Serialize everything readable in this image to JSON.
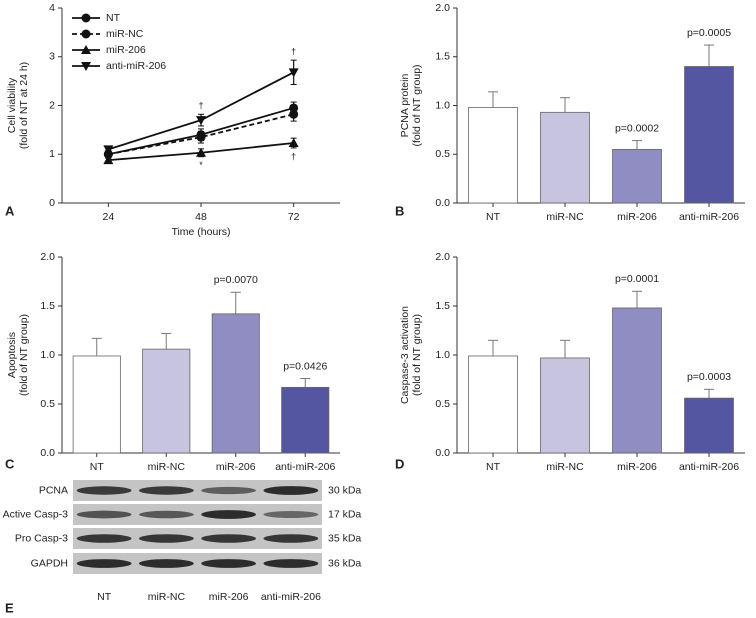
{
  "chart_data": [
    {
      "type": "line",
      "panel": "A",
      "ylabel": [
        "Cell viability",
        "(fold of NT at 24 h)"
      ],
      "xlabel": "Time (hours)",
      "categories": [
        "24",
        "48",
        "72"
      ],
      "ylim": [
        0,
        4
      ],
      "yticks": [
        0,
        1,
        2,
        3,
        4
      ],
      "series": [
        {
          "name": "NT",
          "color": "#111111",
          "marker": "circle",
          "linestyle": "solid",
          "values": [
            1.0,
            1.4,
            1.95
          ],
          "errors": [
            0.08,
            0.12,
            0.12
          ]
        },
        {
          "name": "miR-NC",
          "color": "#111111",
          "marker": "circle",
          "linestyle": "dashed",
          "values": [
            1.0,
            1.35,
            1.82
          ],
          "errors": [
            0.08,
            0.12,
            0.14
          ]
        },
        {
          "name": "miR-206",
          "color": "#111111",
          "marker": "triangle-up",
          "linestyle": "solid",
          "values": [
            0.88,
            1.03,
            1.23
          ],
          "errors": [
            0.05,
            0.08,
            0.1
          ]
        },
        {
          "name": "anti-miR-206",
          "color": "#111111",
          "marker": "triangle-down",
          "linestyle": "solid",
          "values": [
            1.1,
            1.7,
            2.68
          ],
          "errors": [
            0.06,
            0.12,
            0.25
          ]
        }
      ],
      "annotations": [
        {
          "text": "†",
          "category": "48",
          "series": "anti-miR-206"
        },
        {
          "text": "*",
          "category": "48",
          "series": "miR-206"
        },
        {
          "text": "†",
          "category": "72",
          "series": "anti-miR-206"
        },
        {
          "text": "†",
          "category": "72",
          "series": "miR-206"
        }
      ],
      "legend": "upper left"
    },
    {
      "type": "bar",
      "panel": "B",
      "ylabel": [
        "PCNA protein",
        "(fold of NT group)"
      ],
      "categories": [
        "NT",
        "miR-NC",
        "miR-206",
        "anti-miR-206"
      ],
      "colors": [
        "#ffffff",
        "#c7c4e0",
        "#908dc2",
        "#5556a2"
      ],
      "values": [
        0.98,
        0.93,
        0.55,
        1.4
      ],
      "errors": [
        0.16,
        0.15,
        0.09,
        0.22
      ],
      "ylim": [
        0,
        2
      ],
      "yticks": [
        {
          "value": 0,
          "label": "0.0"
        },
        0.5,
        {
          "value": 1,
          "label": "1.0"
        },
        1.5,
        {
          "value": 2,
          "label": "2.0"
        }
      ],
      "annotations": [
        {
          "text": "p=0.0002",
          "category": "miR-206"
        },
        {
          "text": "p=0.0005",
          "category": "anti-miR-206"
        }
      ]
    },
    {
      "type": "bar",
      "panel": "C",
      "ylabel": [
        "Apoptosis",
        "(fold of NT group)"
      ],
      "categories": [
        "NT",
        "miR-NC",
        "miR-206",
        "anti-miR-206"
      ],
      "colors": [
        "#ffffff",
        "#c7c4e0",
        "#908dc2",
        "#5556a2"
      ],
      "values": [
        0.99,
        1.06,
        1.42,
        0.67
      ],
      "errors": [
        0.18,
        0.16,
        0.22,
        0.09
      ],
      "ylim": [
        0,
        2
      ],
      "yticks": [
        {
          "value": 0,
          "label": "0.0"
        },
        0.5,
        {
          "value": 1,
          "label": "1.0"
        },
        1.5,
        {
          "value": 2,
          "label": "2.0"
        }
      ],
      "annotations": [
        {
          "text": "p=0.0070",
          "category": "miR-206"
        },
        {
          "text": "p=0.0426",
          "category": "anti-miR-206"
        }
      ]
    },
    {
      "type": "bar",
      "panel": "D",
      "ylabel": [
        "Caspase-3 activation",
        "(fold of NT group)"
      ],
      "categories": [
        "NT",
        "miR-NC",
        "miR-206",
        "anti-miR-206"
      ],
      "colors": [
        "#ffffff",
        "#c7c4e0",
        "#908dc2",
        "#5556a2"
      ],
      "values": [
        0.99,
        0.97,
        1.48,
        0.56
      ],
      "errors": [
        0.16,
        0.18,
        0.17,
        0.09
      ],
      "ylim": [
        0,
        2
      ],
      "yticks": [
        {
          "value": 0,
          "label": "0.0"
        },
        0.5,
        {
          "value": 1,
          "label": "1.0"
        },
        1.5,
        {
          "value": 2,
          "label": "2.0"
        }
      ],
      "annotations": [
        {
          "text": "p=0.0001",
          "category": "miR-206"
        },
        {
          "text": "p=0.0003",
          "category": "anti-miR-206"
        }
      ]
    }
  ],
  "blot": {
    "panel": "E",
    "rows": [
      "PCNA",
      "Active Casp-3",
      "Pro Casp-3",
      "GAPDH"
    ],
    "sizes": [
      "30 kDa",
      "17 kDa",
      "35 kDa",
      "36 kDa"
    ],
    "lanes": [
      "NT",
      "miR-NC",
      "miR-206",
      "anti-miR-206"
    ]
  }
}
